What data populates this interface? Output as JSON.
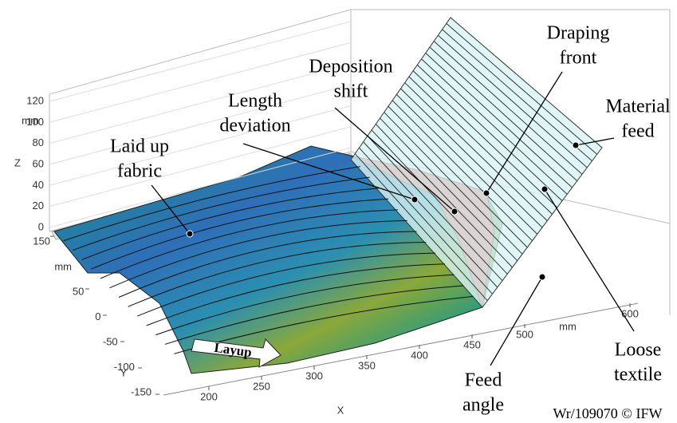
{
  "chart_data": {
    "type": "surface3d",
    "xlabel": "X",
    "ylabel": "Y",
    "zlabel": "Z",
    "xunit": "mm",
    "yunit": "mm",
    "zunit": "mm",
    "xlim": [
      200,
      600
    ],
    "xticks": [
      200,
      250,
      300,
      350,
      400,
      450,
      500,
      600
    ],
    "ylim": [
      -150,
      150
    ],
    "yticks": [
      -150,
      -100,
      -50,
      0,
      50,
      150
    ],
    "zlim": [
      0,
      120
    ],
    "zticks": [
      0,
      20,
      40,
      60,
      80,
      100,
      120
    ],
    "grid": true,
    "annotations": [
      {
        "lines": [
          "Laid up",
          "fabric"
        ]
      },
      {
        "lines": [
          "Length",
          "deviation"
        ]
      },
      {
        "lines": [
          "Deposition",
          "shift"
        ]
      },
      {
        "lines": [
          "Draping",
          "front"
        ]
      },
      {
        "lines": [
          "Material",
          "feed"
        ]
      },
      {
        "lines": [
          "Loose",
          "textile"
        ]
      },
      {
        "lines": [
          "Feed",
          "angle"
        ]
      }
    ],
    "arrow_label": "Layup",
    "credit": "Wr/109070 © IFW"
  }
}
